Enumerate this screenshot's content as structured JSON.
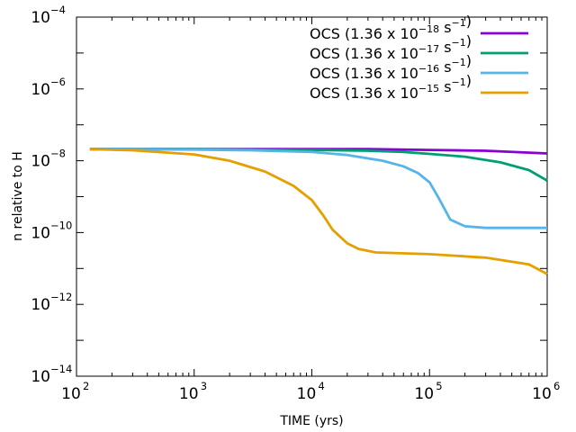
{
  "chart_data": {
    "type": "line",
    "title": "",
    "xlabel": "TIME (yrs)",
    "ylabel": "n relative to H",
    "xscale": "log",
    "yscale": "log",
    "xlim": [
      100,
      1000000
    ],
    "ylim": [
      1e-14,
      0.0001
    ],
    "grid": false,
    "legend_position": "top-right",
    "x_ticks": [
      {
        "base": "10",
        "exp": "2",
        "value": 100
      },
      {
        "base": "10",
        "exp": "3",
        "value": 1000
      },
      {
        "base": "10",
        "exp": "4",
        "value": 10000
      },
      {
        "base": "10",
        "exp": "5",
        "value": 100000
      },
      {
        "base": "10",
        "exp": "6",
        "value": 1000000
      }
    ],
    "y_ticks": [
      {
        "base": "10",
        "exp": "−4",
        "value": 0.0001
      },
      {
        "base": "10",
        "exp": "−6",
        "value": 1e-06
      },
      {
        "base": "10",
        "exp": "−8",
        "value": 1e-08
      },
      {
        "base": "10",
        "exp": "−10",
        "value": 1e-10
      },
      {
        "base": "10",
        "exp": "−12",
        "value": 1e-12
      },
      {
        "base": "10",
        "exp": "−14",
        "value": 1e-14
      }
    ],
    "series": [
      {
        "name": "OCS (1.36 x 10−18 s−1)",
        "label_prefix": "OCS (1.36 x 10",
        "label_exp": "−18",
        "label_mid": " s",
        "label_unit_exp": "−1",
        "label_suffix": ")",
        "color": "#8a00d4",
        "x": [
          130,
          1000,
          10000,
          30000,
          100000,
          300000,
          1000000
        ],
        "y": [
          2.1e-08,
          2.1e-08,
          2.1e-08,
          2.1e-08,
          2e-08,
          1.9e-08,
          1.6e-08
        ]
      },
      {
        "name": "OCS (1.36 x 10−17 s−1)",
        "label_prefix": "OCS (1.36 x 10",
        "label_exp": "−17",
        "label_mid": " s",
        "label_unit_exp": "−1",
        "label_suffix": ")",
        "color": "#009e73",
        "x": [
          130,
          1000,
          10000,
          30000,
          60000,
          100000,
          200000,
          400000,
          700000,
          1000000
        ],
        "y": [
          2.1e-08,
          2.1e-08,
          2e-08,
          1.9e-08,
          1.75e-08,
          1.55e-08,
          1.3e-08,
          9e-09,
          5.5e-09,
          2.8e-09
        ]
      },
      {
        "name": "OCS (1.36 x 10−16 s−1)",
        "label_prefix": "OCS (1.36 x 10",
        "label_exp": "−16",
        "label_mid": " s",
        "label_unit_exp": "−1",
        "label_suffix": ")",
        "color": "#56b4e9",
        "x": [
          130,
          1000,
          3000,
          10000,
          20000,
          40000,
          60000,
          80000,
          100000,
          120000,
          150000,
          200000,
          300000,
          500000,
          1000000
        ],
        "y": [
          2.1e-08,
          2.05e-08,
          1.95e-08,
          1.75e-08,
          1.45e-08,
          1e-08,
          7e-09,
          4.5e-09,
          2.5e-09,
          9e-10,
          2.3e-10,
          1.5e-10,
          1.35e-10,
          1.35e-10,
          1.35e-10
        ]
      },
      {
        "name": "OCS (1.36 x 10−15 s−1)",
        "label_prefix": "OCS (1.36 x 10",
        "label_exp": "−15",
        "label_mid": " s",
        "label_unit_exp": "−1",
        "label_suffix": ")",
        "color": "#e69f00",
        "x": [
          130,
          300,
          1000,
          2000,
          4000,
          7000,
          10000,
          12500,
          15000,
          20000,
          25000,
          35000,
          100000,
          300000,
          700000,
          1000000
        ],
        "y": [
          2.1e-08,
          1.95e-08,
          1.5e-08,
          1e-08,
          5e-09,
          2e-09,
          8e-10,
          3e-10,
          1.2e-10,
          5e-11,
          3.5e-11,
          2.8e-11,
          2.5e-11,
          2e-11,
          1.3e-11,
          7e-12
        ]
      }
    ]
  }
}
